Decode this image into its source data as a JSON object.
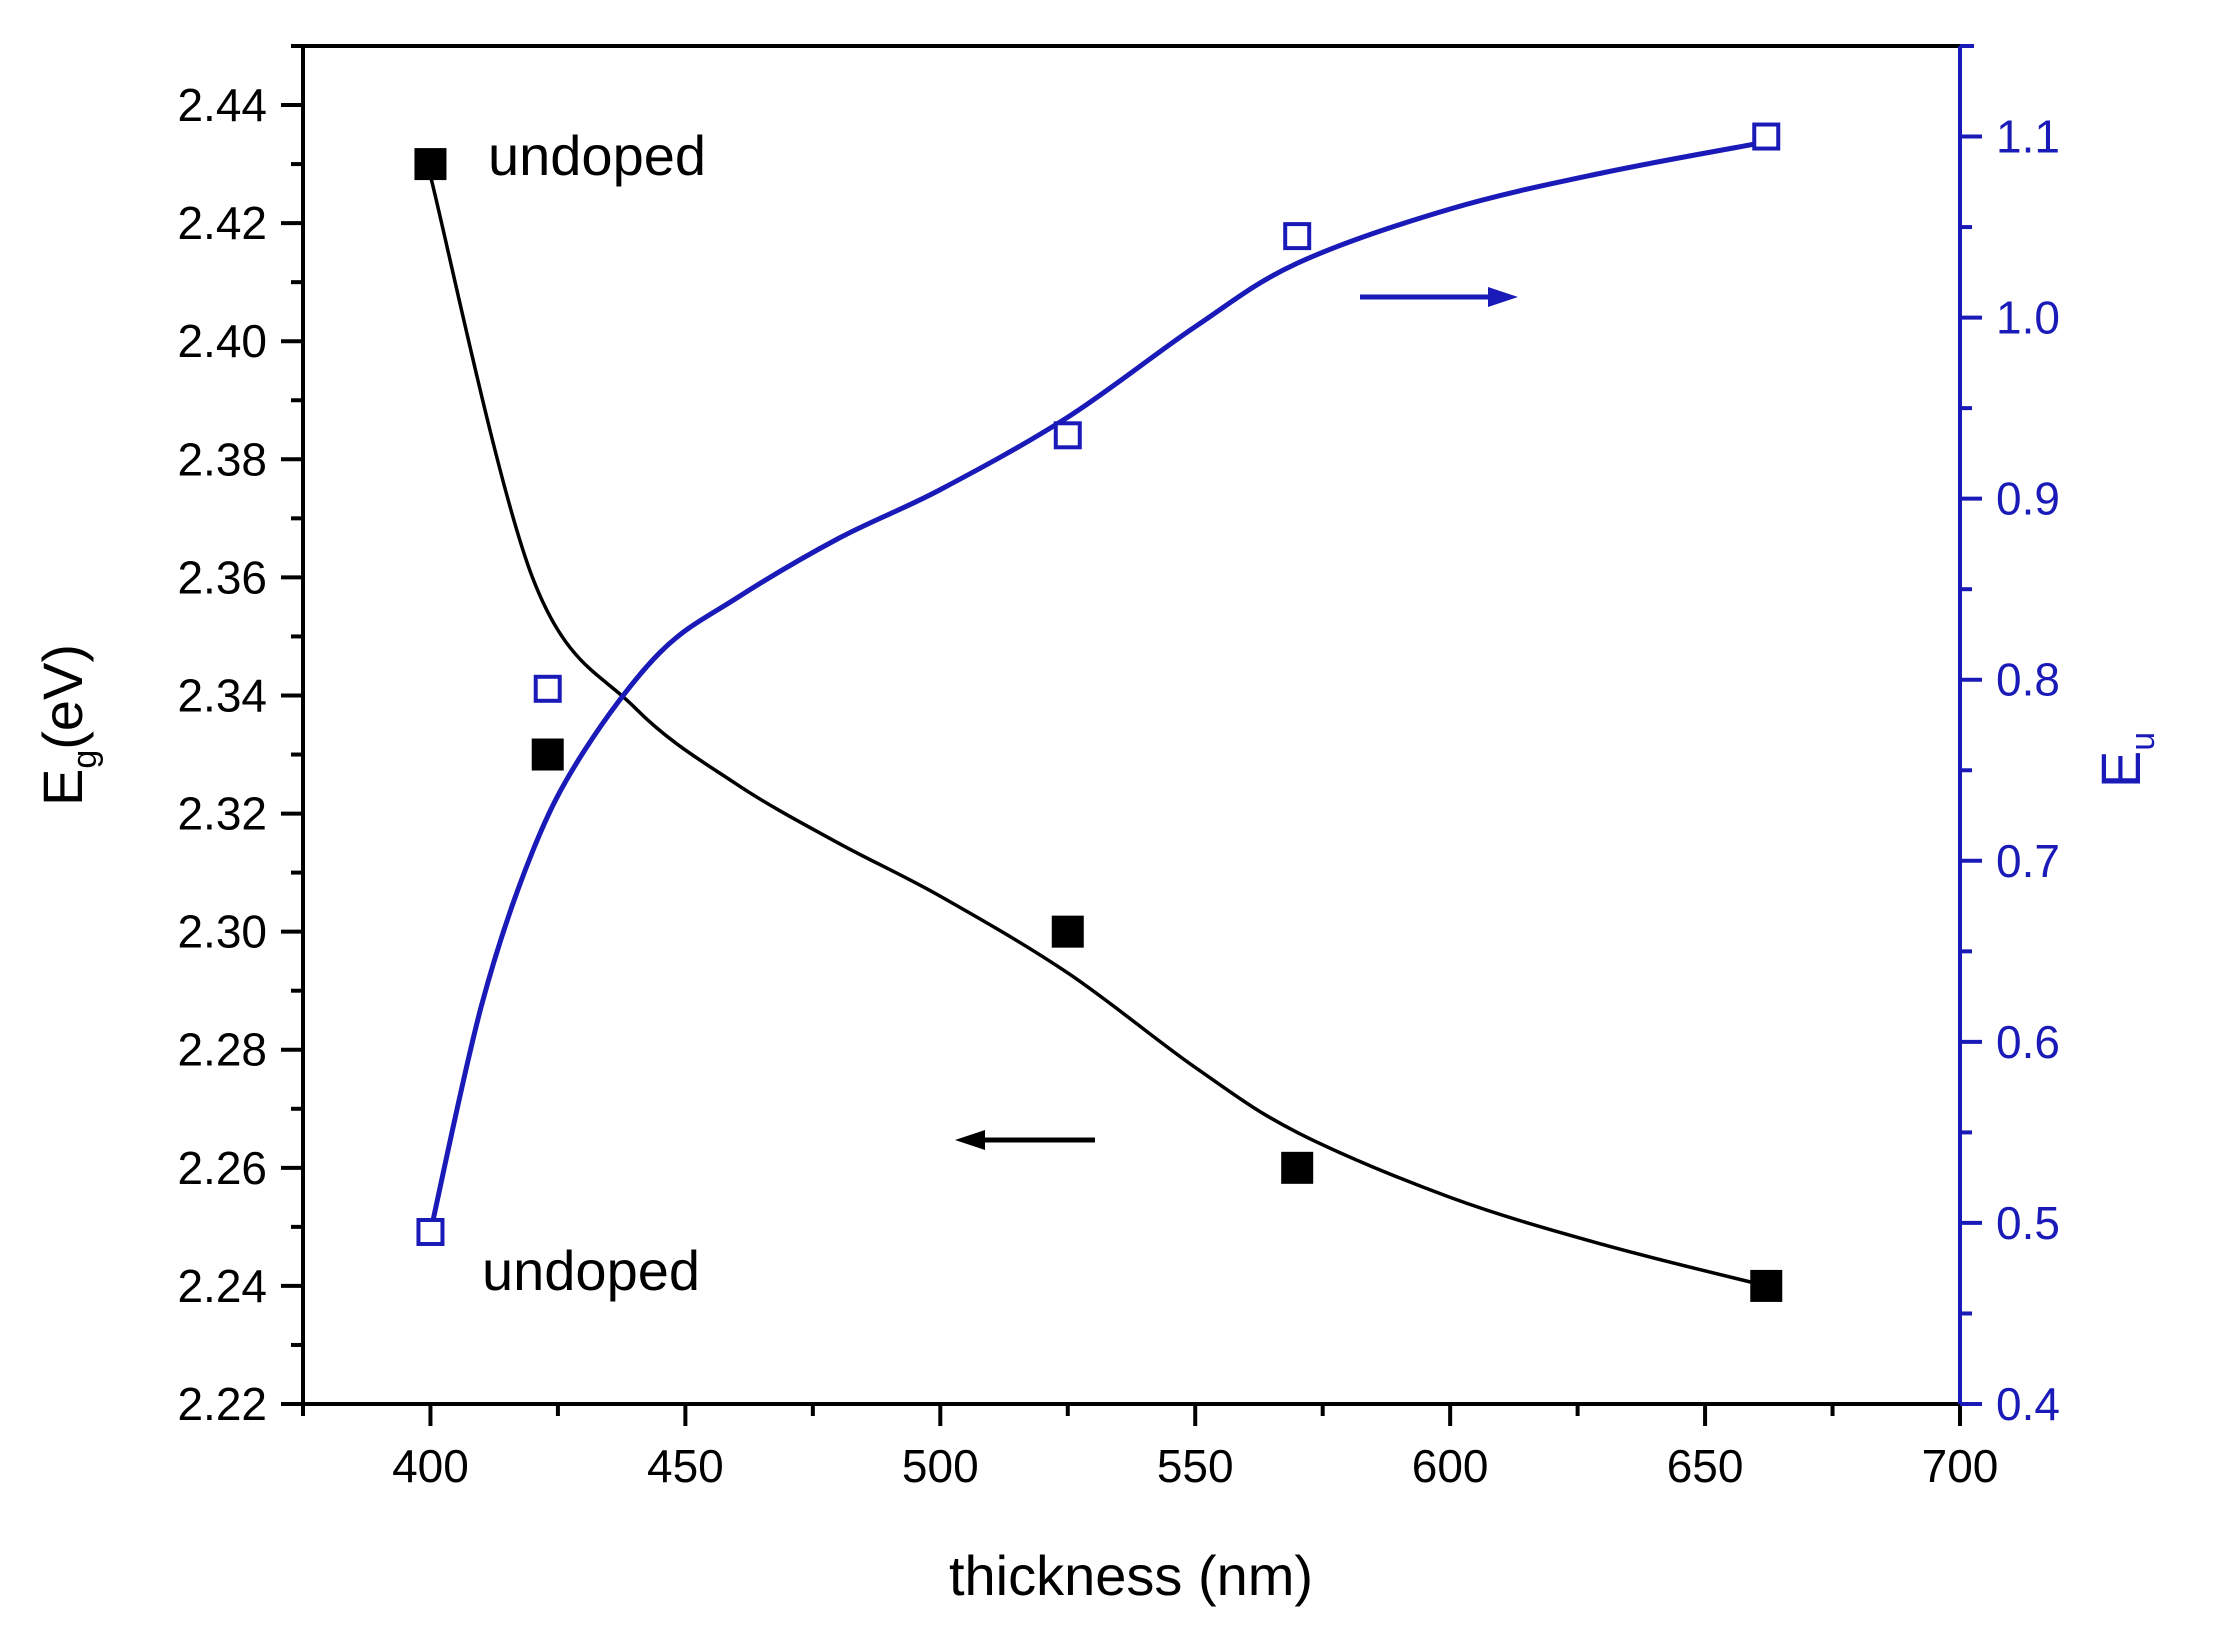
{
  "chart_data": {
    "type": "scatter",
    "xlabel": "thickness (nm)",
    "ylabel": "E",
    "ylabel_sub": "g",
    "ylabel_unit": "(eV)",
    "y2label": "E",
    "y2label_sub": "u",
    "xlim": [
      375,
      700
    ],
    "ylim": [
      2.22,
      2.45
    ],
    "y2lim": [
      0.4,
      1.15
    ],
    "xticks": [
      "400",
      "450",
      "500",
      "550",
      "600",
      "650",
      "700"
    ],
    "yticks": [
      "2.22",
      "2.24",
      "2.26",
      "2.28",
      "2.30",
      "2.32",
      "2.34",
      "2.36",
      "2.38",
      "2.40",
      "2.42",
      "2.44"
    ],
    "y2ticks": [
      "0.4",
      "0.5",
      "0.6",
      "0.7",
      "0.8",
      "0.9",
      "1.0",
      "1.1"
    ],
    "colors": {
      "eg": "#000000",
      "eu": "#1a1ab8"
    },
    "series": [
      {
        "name": "Eg",
        "axis": "left",
        "marker": "filled-square",
        "x": [
          400,
          423,
          525,
          570,
          662
        ],
        "y": [
          2.43,
          2.33,
          2.3,
          2.26,
          2.24
        ],
        "fit_x": [
          400,
          420,
          440,
          460,
          480,
          500,
          525,
          550,
          570,
          600,
          630,
          662
        ],
        "fit_y": [
          2.428,
          2.36,
          2.338,
          2.325,
          2.315,
          2.306,
          2.293,
          2.277,
          2.266,
          2.255,
          2.247,
          2.24
        ]
      },
      {
        "name": "Eu",
        "axis": "right",
        "marker": "open-square",
        "x": [
          400,
          423,
          525,
          570,
          662
        ],
        "y": [
          0.495,
          0.795,
          0.935,
          1.045,
          1.1
        ],
        "fit_x": [
          400,
          410,
          420,
          430,
          445,
          460,
          480,
          500,
          525,
          550,
          570,
          600,
          630,
          662
        ],
        "fit_y": [
          0.495,
          0.62,
          0.705,
          0.76,
          0.815,
          0.845,
          0.878,
          0.905,
          0.945,
          0.995,
          1.03,
          1.06,
          1.08,
          1.097
        ]
      }
    ],
    "annotations": [
      {
        "text": "undoped",
        "near_series": "Eg"
      },
      {
        "text": "undoped",
        "near_series": "Eu"
      }
    ]
  }
}
